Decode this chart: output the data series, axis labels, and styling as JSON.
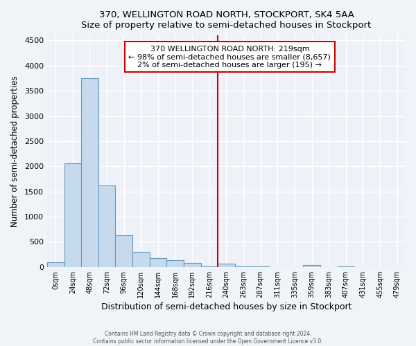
{
  "title": "370, WELLINGTON ROAD NORTH, STOCKPORT, SK4 5AA",
  "subtitle": "Size of property relative to semi-detached houses in Stockport",
  "xlabel": "Distribution of semi-detached houses by size in Stockport",
  "ylabel": "Number of semi-detached properties",
  "annotation_line1": "370 WELLINGTON ROAD NORTH: 219sqm",
  "annotation_line2": "← 98% of semi-detached houses are smaller (8,657)",
  "annotation_line3": "2% of semi-detached houses are larger (195) →",
  "bar_color": "#c6d9ed",
  "bar_edge_color": "#6699bb",
  "marker_color": "#cc0000",
  "background_color": "#f0f4f8",
  "plot_bg_color": "#eef2f8",
  "categories": [
    "0sqm",
    "24sqm",
    "48sqm",
    "72sqm",
    "96sqm",
    "120sqm",
    "144sqm",
    "168sqm",
    "192sqm",
    "216sqm",
    "240sqm",
    "263sqm",
    "287sqm",
    "311sqm",
    "335sqm",
    "359sqm",
    "383sqm",
    "407sqm",
    "431sqm",
    "455sqm",
    "479sqm"
  ],
  "values": [
    100,
    2055,
    3750,
    1625,
    630,
    295,
    175,
    140,
    85,
    5,
    60,
    10,
    5,
    3,
    3,
    40,
    0,
    5,
    0,
    0,
    0
  ],
  "ylim": [
    0,
    4600
  ],
  "yticks": [
    0,
    500,
    1000,
    1500,
    2000,
    2500,
    3000,
    3500,
    4000,
    4500
  ],
  "marker_index": 9,
  "footnote1": "Contains HM Land Registry data © Crown copyright and database right 2024.",
  "footnote2": "Contains public sector information licensed under the Open Government Licence v3.0."
}
